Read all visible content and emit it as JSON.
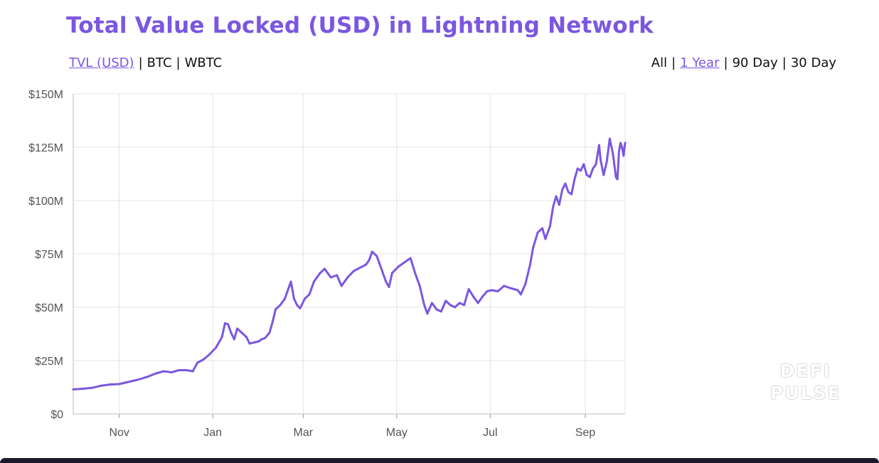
{
  "title": "Total Value Locked (USD) in Lightning Network",
  "metric_toggles": {
    "items": [
      "TVL (USD)",
      "BTC",
      "WBTC"
    ],
    "active": "TVL (USD)"
  },
  "range_toggles": {
    "items": [
      "All",
      "1 Year",
      "90 Day",
      "30 Day"
    ],
    "active": "1 Year"
  },
  "watermark": [
    "DEFI",
    "PULSE"
  ],
  "colors": {
    "accent": "#7b57e0",
    "line": "#7b57e0",
    "grid": "#e4e4e4",
    "text": "#111111"
  },
  "chart_data": {
    "type": "line",
    "title": "Total Value Locked (USD) in Lightning Network",
    "xlabel": "",
    "ylabel": "",
    "ylim": [
      0,
      150
    ],
    "y_unit": "M USD",
    "xlim": [
      "2020-10-02",
      "2021-09-27"
    ],
    "grid": true,
    "y_ticks": [
      {
        "value": 0,
        "label": "$0"
      },
      {
        "value": 25,
        "label": "$25M"
      },
      {
        "value": 50,
        "label": "$50M"
      },
      {
        "value": 75,
        "label": "$75M"
      },
      {
        "value": 100,
        "label": "$100M"
      },
      {
        "value": 125,
        "label": "$125M"
      },
      {
        "value": 150,
        "label": "$150M"
      }
    ],
    "x_ticks": [
      {
        "date": "2020-11-01",
        "label": "Nov"
      },
      {
        "date": "2021-01-01",
        "label": "Jan"
      },
      {
        "date": "2021-03-01",
        "label": "Mar"
      },
      {
        "date": "2021-05-01",
        "label": "May"
      },
      {
        "date": "2021-07-01",
        "label": "Jul"
      },
      {
        "date": "2021-09-01",
        "label": "Sep"
      }
    ],
    "series": [
      {
        "points": [
          [
            "2020-10-02",
            11.5
          ],
          [
            "2020-10-08",
            11.8
          ],
          [
            "2020-10-14",
            12.2
          ],
          [
            "2020-10-20",
            13.2
          ],
          [
            "2020-10-26",
            13.8
          ],
          [
            "2020-11-01",
            14.0
          ],
          [
            "2020-11-07",
            15.0
          ],
          [
            "2020-11-13",
            16.0
          ],
          [
            "2020-11-19",
            17.3
          ],
          [
            "2020-11-25",
            19.0
          ],
          [
            "2020-11-30",
            20.0
          ],
          [
            "2020-12-05",
            19.5
          ],
          [
            "2020-12-10",
            20.5
          ],
          [
            "2020-12-15",
            20.5
          ],
          [
            "2020-12-19",
            20.0
          ],
          [
            "2020-12-22",
            24.0
          ],
          [
            "2020-12-26",
            25.5
          ],
          [
            "2020-12-30",
            28.0
          ],
          [
            "2021-01-03",
            31.0
          ],
          [
            "2021-01-07",
            36.0
          ],
          [
            "2021-01-09",
            42.5
          ],
          [
            "2021-01-11",
            42.0
          ],
          [
            "2021-01-13",
            38.0
          ],
          [
            "2021-01-15",
            35.0
          ],
          [
            "2021-01-17",
            40.0
          ],
          [
            "2021-01-20",
            38.0
          ],
          [
            "2021-01-23",
            36.0
          ],
          [
            "2021-01-25",
            33.0
          ],
          [
            "2021-01-28",
            33.5
          ],
          [
            "2021-01-31",
            34.0
          ],
          [
            "2021-02-02",
            35.0
          ],
          [
            "2021-02-04",
            35.5
          ],
          [
            "2021-02-07",
            38.0
          ],
          [
            "2021-02-09",
            43.0
          ],
          [
            "2021-02-11",
            49.0
          ],
          [
            "2021-02-14",
            51.0
          ],
          [
            "2021-02-17",
            54.0
          ],
          [
            "2021-02-20",
            60.0
          ],
          [
            "2021-02-21",
            62.0
          ],
          [
            "2021-02-23",
            54.0
          ],
          [
            "2021-02-25",
            51.0
          ],
          [
            "2021-02-27",
            49.5
          ],
          [
            "2021-03-02",
            54.0
          ],
          [
            "2021-03-05",
            56.0
          ],
          [
            "2021-03-08",
            62.0
          ],
          [
            "2021-03-12",
            66.0
          ],
          [
            "2021-03-15",
            68.0
          ],
          [
            "2021-03-19",
            64.0
          ],
          [
            "2021-03-23",
            65.0
          ],
          [
            "2021-03-26",
            60.0
          ],
          [
            "2021-03-30",
            64.0
          ],
          [
            "2021-04-03",
            67.0
          ],
          [
            "2021-04-07",
            68.5
          ],
          [
            "2021-04-11",
            70.0
          ],
          [
            "2021-04-13",
            72.0
          ],
          [
            "2021-04-15",
            76.0
          ],
          [
            "2021-04-18",
            74.0
          ],
          [
            "2021-04-21",
            68.0
          ],
          [
            "2021-04-24",
            62.0
          ],
          [
            "2021-04-26",
            59.5
          ],
          [
            "2021-04-28",
            66.0
          ],
          [
            "2021-05-02",
            69.0
          ],
          [
            "2021-05-06",
            71.0
          ],
          [
            "2021-05-10",
            73.0
          ],
          [
            "2021-05-13",
            66.0
          ],
          [
            "2021-05-16",
            60.0
          ],
          [
            "2021-05-19",
            51.0
          ],
          [
            "2021-05-21",
            47.0
          ],
          [
            "2021-05-24",
            52.0
          ],
          [
            "2021-05-27",
            49.0
          ],
          [
            "2021-05-30",
            48.0
          ],
          [
            "2021-06-02",
            53.0
          ],
          [
            "2021-06-05",
            51.0
          ],
          [
            "2021-06-08",
            50.0
          ],
          [
            "2021-06-11",
            52.0
          ],
          [
            "2021-06-14",
            51.0
          ],
          [
            "2021-06-17",
            58.5
          ],
          [
            "2021-06-20",
            55.0
          ],
          [
            "2021-06-23",
            52.0
          ],
          [
            "2021-06-26",
            55.0
          ],
          [
            "2021-06-29",
            57.5
          ],
          [
            "2021-07-02",
            58.0
          ],
          [
            "2021-07-06",
            57.5
          ],
          [
            "2021-07-10",
            60.0
          ],
          [
            "2021-07-14",
            59.0
          ],
          [
            "2021-07-19",
            58.0
          ],
          [
            "2021-07-21",
            56.0
          ],
          [
            "2021-07-24",
            61.0
          ],
          [
            "2021-07-27",
            70.0
          ],
          [
            "2021-07-29",
            78.0
          ],
          [
            "2021-08-01",
            85.0
          ],
          [
            "2021-08-04",
            87.0
          ],
          [
            "2021-08-06",
            82.0
          ],
          [
            "2021-08-09",
            88.0
          ],
          [
            "2021-08-11",
            97.0
          ],
          [
            "2021-08-13",
            102.0
          ],
          [
            "2021-08-15",
            98.0
          ],
          [
            "2021-08-17",
            105.0
          ],
          [
            "2021-08-19",
            108.0
          ],
          [
            "2021-08-21",
            104.0
          ],
          [
            "2021-08-23",
            103.0
          ],
          [
            "2021-08-25",
            110.0
          ],
          [
            "2021-08-27",
            115.0
          ],
          [
            "2021-08-29",
            114.0
          ],
          [
            "2021-08-31",
            117.0
          ],
          [
            "2021-09-02",
            112.0
          ],
          [
            "2021-09-04",
            111.0
          ],
          [
            "2021-09-06",
            115.0
          ],
          [
            "2021-09-08",
            117.0
          ],
          [
            "2021-09-10",
            126.0
          ],
          [
            "2021-09-11",
            119.0
          ],
          [
            "2021-09-13",
            112.0
          ],
          [
            "2021-09-15",
            118.0
          ],
          [
            "2021-09-17",
            129.0
          ],
          [
            "2021-09-19",
            122.0
          ],
          [
            "2021-09-21",
            111.0
          ],
          [
            "2021-09-22",
            110.0
          ],
          [
            "2021-09-23",
            123.0
          ],
          [
            "2021-09-24",
            127.0
          ],
          [
            "2021-09-25",
            125.0
          ],
          [
            "2021-09-26",
            121.0
          ],
          [
            "2021-09-27",
            127.0
          ]
        ]
      }
    ]
  }
}
